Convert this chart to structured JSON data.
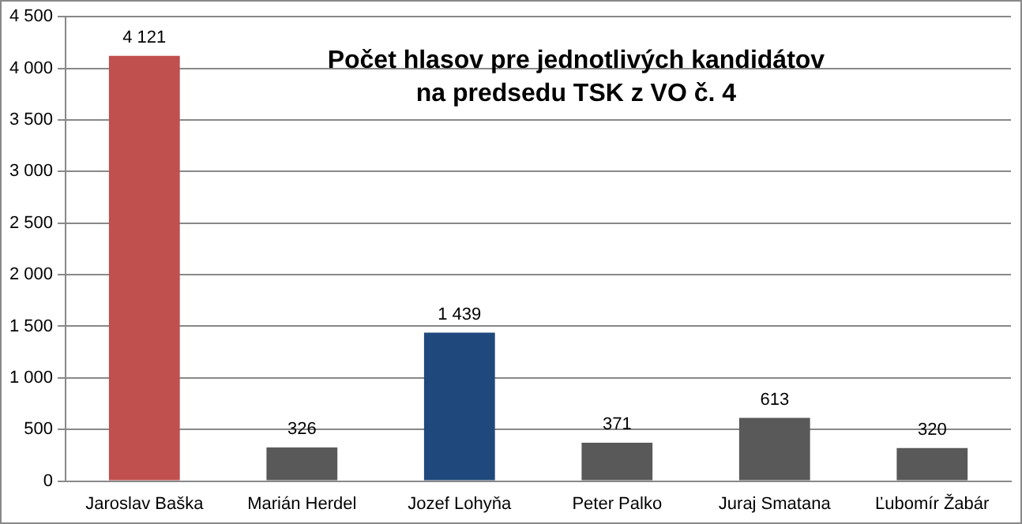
{
  "chart_data": {
    "type": "bar",
    "title": "Počet hlasov pre jednotlivých kandidátov\nna predsedu TSK z VO č. 4",
    "categories": [
      "Jaroslav Baška",
      "Marián Herdel",
      "Jozef Lohyňa",
      "Peter Palko",
      "Juraj Smatana",
      "Ľubomír Žabár"
    ],
    "values": [
      4121,
      326,
      1439,
      371,
      613,
      320
    ],
    "value_labels": [
      "4 121",
      "326",
      "1 439",
      "371",
      "613",
      "320"
    ],
    "colors": [
      "#c0504d",
      "#595959",
      "#1f497d",
      "#595959",
      "#595959",
      "#595959"
    ],
    "ylim": [
      0,
      4500
    ],
    "yticks": [
      0,
      {
        "value": 500,
        "label": "500"
      },
      {
        "value": 1000,
        "label": "1 000"
      },
      {
        "value": 1500,
        "label": "1 500"
      },
      {
        "value": 2000,
        "label": "2 000"
      },
      {
        "value": 2500,
        "label": "2 500"
      },
      {
        "value": 3000,
        "label": "3 000"
      },
      {
        "value": 3500,
        "label": "3 500"
      },
      {
        "value": 4000,
        "label": "4 000"
      },
      {
        "value": 4500,
        "label": "4 500"
      }
    ],
    "grid": "y"
  }
}
